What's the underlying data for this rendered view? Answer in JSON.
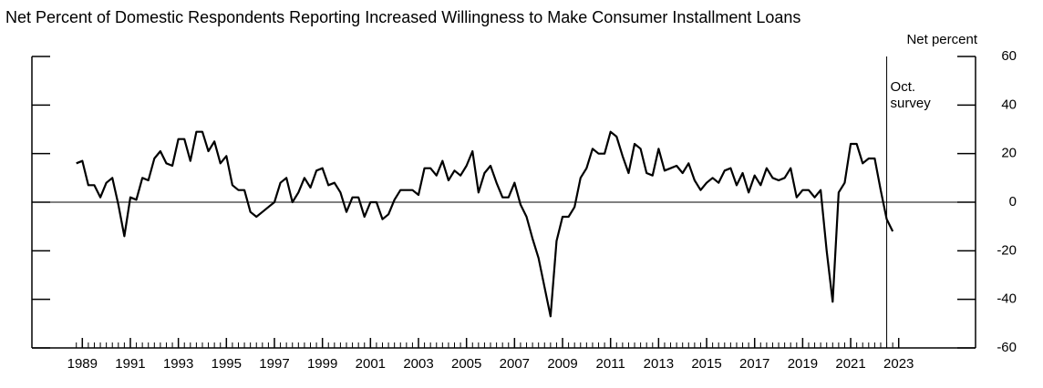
{
  "chart_data": {
    "type": "line",
    "title": "Net Percent of Domestic Respondents Reporting Increased Willingness to Make Consumer Installment Loans",
    "y_axis_label": "Net percent",
    "annotation": {
      "text": [
        "Oct.",
        "survey"
      ],
      "x": 2022.5
    },
    "xlim": [
      1986.9,
      2026.2
    ],
    "xticks": [
      1989,
      1991,
      1993,
      1995,
      1997,
      1999,
      2001,
      2003,
      2005,
      2007,
      2009,
      2011,
      2013,
      2015,
      2017,
      2019,
      2021,
      2023
    ],
    "ylim": [
      -60,
      60
    ],
    "yticks": [
      -60,
      -40,
      -20,
      0,
      20,
      40,
      60
    ],
    "zero_line": true,
    "series": [
      {
        "name": "Net percent",
        "color": "#000000",
        "x": [
          1988.75,
          1989,
          1989.25,
          1989.5,
          1989.75,
          1990,
          1990.25,
          1990.5,
          1990.75,
          1991,
          1991.25,
          1991.5,
          1991.75,
          1992,
          1992.25,
          1992.5,
          1992.75,
          1993,
          1993.25,
          1993.5,
          1993.75,
          1994,
          1994.25,
          1994.5,
          1994.75,
          1995,
          1995.25,
          1995.5,
          1995.75,
          1996,
          1996.25,
          1996.5,
          1996.75,
          1997,
          1997.25,
          1997.5,
          1997.75,
          1998,
          1998.25,
          1998.5,
          1998.75,
          1999,
          1999.25,
          1999.5,
          1999.75,
          2000,
          2000.25,
          2000.5,
          2000.75,
          2001,
          2001.25,
          2001.5,
          2001.75,
          2002,
          2002.25,
          2002.5,
          2002.75,
          2003,
          2003.25,
          2003.5,
          2003.75,
          2004,
          2004.25,
          2004.5,
          2004.75,
          2005,
          2005.25,
          2005.5,
          2005.75,
          2006,
          2006.25,
          2006.5,
          2006.75,
          2007,
          2007.25,
          2007.5,
          2007.75,
          2008,
          2008.25,
          2008.5,
          2008.75,
          2009,
          2009.25,
          2009.5,
          2009.75,
          2010,
          2010.25,
          2010.5,
          2010.75,
          2011,
          2011.25,
          2011.5,
          2011.75,
          2012,
          2012.25,
          2012.5,
          2012.75,
          2013,
          2013.25,
          2013.5,
          2013.75,
          2014,
          2014.25,
          2014.5,
          2014.75,
          2015,
          2015.25,
          2015.5,
          2015.75,
          2016,
          2016.25,
          2016.5,
          2016.75,
          2017,
          2017.25,
          2017.5,
          2017.75,
          2018,
          2018.25,
          2018.5,
          2018.75,
          2019,
          2019.25,
          2019.5,
          2019.75,
          2020,
          2020.25,
          2020.5,
          2020.75,
          2021,
          2021.25,
          2021.5,
          2021.75,
          2022,
          2022.25,
          2022.5,
          2022.75
        ],
        "values": [
          16,
          17,
          7,
          7,
          2,
          8,
          10,
          -1,
          -14,
          2,
          1,
          10,
          9,
          18,
          21,
          16,
          15,
          26,
          26,
          17,
          29,
          29,
          21,
          25,
          16,
          19,
          7,
          5,
          5,
          -4,
          -6,
          -4,
          -2,
          0,
          8,
          10,
          0,
          4,
          10,
          6,
          13,
          14,
          7,
          8,
          4,
          -4,
          2,
          2,
          -6,
          0,
          0,
          -7,
          -5,
          1,
          5,
          5,
          5,
          3,
          14,
          14,
          11,
          17,
          9,
          13,
          11,
          15,
          21,
          4,
          12,
          15,
          8,
          2,
          2,
          8,
          -1,
          -6,
          -15,
          -23,
          -35,
          -47,
          -16,
          -6,
          -6,
          -2,
          10,
          14,
          22,
          20,
          20,
          29,
          27,
          19,
          12,
          24,
          22,
          12,
          11,
          22,
          13,
          14,
          15,
          12,
          16,
          9,
          5,
          8,
          10,
          8,
          13,
          14,
          7,
          12,
          4,
          11,
          7,
          14,
          10,
          9,
          10,
          14,
          2,
          5,
          5,
          2,
          5,
          -20,
          -41,
          4,
          8,
          24,
          24,
          16,
          18,
          18,
          5,
          -7,
          -12
        ]
      }
    ]
  }
}
